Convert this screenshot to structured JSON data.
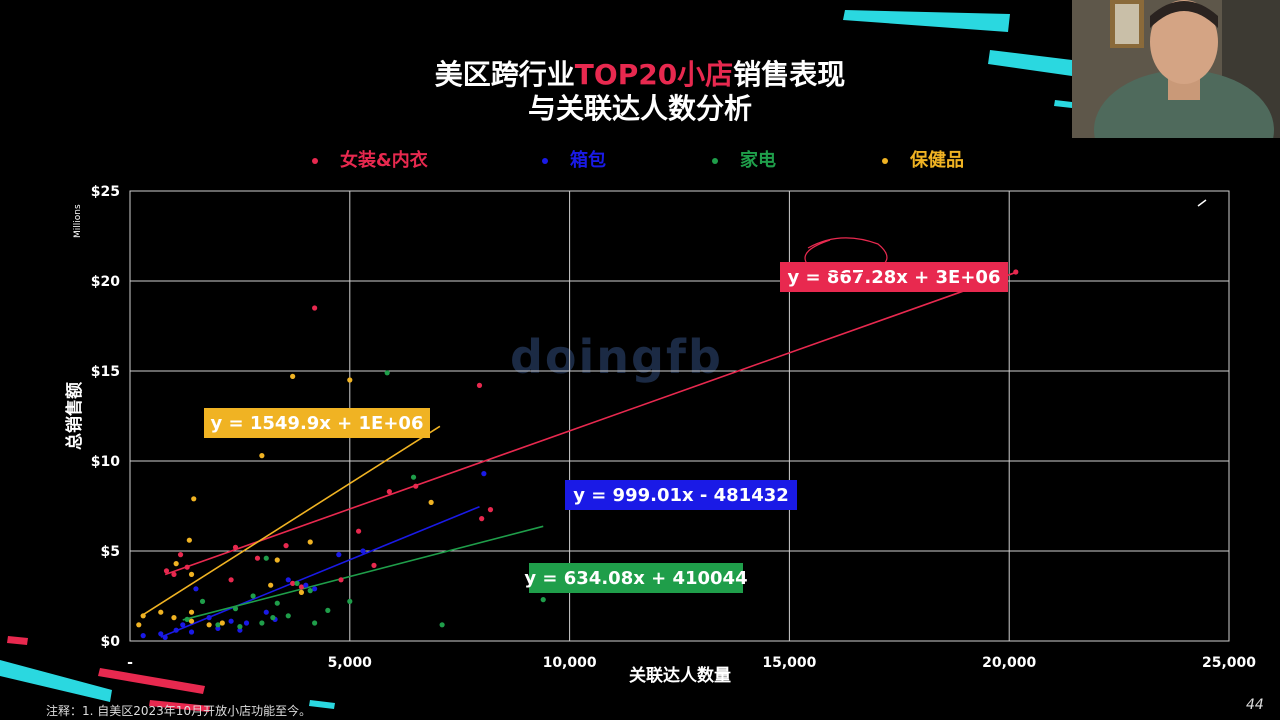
{
  "title": {
    "line1_prefix": "美区跨行业",
    "line1_highlight": "TOP20小店",
    "line1_suffix": "销售表现",
    "line2": "与关联达人数分析"
  },
  "watermark": "doingfb",
  "footnote": "注释：1. 自美区2023年10月开放小店功能至今。",
  "page_number": "44",
  "colors": {
    "women": "#e8294f",
    "bags": "#1a1ae6",
    "appliance": "#1f9e4a",
    "health": "#f0b323",
    "accent": "#00d8e0"
  },
  "chart_data": {
    "type": "scatter",
    "xlabel": "关联达人数量",
    "ylabel": "总销售额",
    "yunit": "Millions",
    "xlim": [
      0,
      25000
    ],
    "ylim": [
      0,
      25
    ],
    "x_ticks": [
      "-",
      "5,000",
      "10,000",
      "15,000",
      "20,000",
      "25,000"
    ],
    "y_ticks": [
      "$0",
      "$5",
      "$10",
      "$15",
      "$20",
      "$25"
    ],
    "grid": true,
    "legend_position": "top",
    "series": [
      {
        "name": "女装&内衣",
        "color": "#e8294f",
        "points": [
          [
            830,
            3.9
          ],
          [
            1150,
            4.8
          ],
          [
            1300,
            4.1
          ],
          [
            2300,
            3.4
          ],
          [
            2400,
            5.2
          ],
          [
            3550,
            5.3
          ],
          [
            3700,
            3.2
          ],
          [
            4200,
            18.5
          ],
          [
            4800,
            3.4
          ],
          [
            5200,
            6.1
          ],
          [
            5550,
            4.2
          ],
          [
            5900,
            8.3
          ],
          [
            7950,
            14.2
          ],
          [
            8000,
            6.8
          ],
          [
            8200,
            7.3
          ],
          [
            20150,
            20.5
          ],
          [
            1000,
            3.7
          ],
          [
            2900,
            4.6
          ],
          [
            3900,
            3.0
          ],
          [
            6500,
            8.6
          ]
        ],
        "trendline": {
          "slope": 867.28,
          "intercept": 3000000,
          "x_range": [
            800,
            20150
          ],
          "label": "y = 867.28x + 3E+06"
        }
      },
      {
        "name": "箱包",
        "color": "#1a1ae6",
        "points": [
          [
            300,
            0.3
          ],
          [
            700,
            0.4
          ],
          [
            1050,
            0.6
          ],
          [
            1200,
            0.9
          ],
          [
            1400,
            0.5
          ],
          [
            2000,
            0.7
          ],
          [
            2650,
            1.0
          ],
          [
            3300,
            1.2
          ],
          [
            3600,
            3.4
          ],
          [
            4200,
            2.9
          ],
          [
            4750,
            4.8
          ],
          [
            5300,
            5.0
          ],
          [
            8050,
            9.3
          ],
          [
            2300,
            1.1
          ],
          [
            1500,
            2.9
          ],
          [
            3100,
            1.6
          ],
          [
            800,
            0.2
          ],
          [
            1800,
            1.3
          ],
          [
            2500,
            0.6
          ],
          [
            4000,
            3.1
          ]
        ],
        "trendline": {
          "slope": 999.01,
          "intercept": -481432,
          "x_range": [
            700,
            7950
          ],
          "label": "y = 999.01x - 481432"
        }
      },
      {
        "name": "家电",
        "color": "#1f9e4a",
        "points": [
          [
            1650,
            2.2
          ],
          [
            2400,
            1.8
          ],
          [
            2500,
            0.8
          ],
          [
            3000,
            1.0
          ],
          [
            3100,
            4.6
          ],
          [
            3250,
            1.3
          ],
          [
            3350,
            2.1
          ],
          [
            3600,
            1.4
          ],
          [
            4100,
            2.8
          ],
          [
            4200,
            1.0
          ],
          [
            5000,
            2.2
          ],
          [
            5850,
            14.9
          ],
          [
            6450,
            9.1
          ],
          [
            7100,
            0.9
          ],
          [
            9400,
            2.3
          ],
          [
            1300,
            1.2
          ],
          [
            2000,
            0.9
          ],
          [
            2800,
            2.5
          ],
          [
            3800,
            3.2
          ],
          [
            4500,
            1.7
          ]
        ],
        "trendline": {
          "slope": 634.08,
          "intercept": 410044,
          "x_range": [
            1200,
            9400
          ],
          "label": "y = 634.08x + 410044"
        }
      },
      {
        "name": "保健品",
        "color": "#f0b323",
        "points": [
          [
            300,
            1.4
          ],
          [
            700,
            1.6
          ],
          [
            1000,
            1.3
          ],
          [
            1050,
            4.3
          ],
          [
            1350,
            5.6
          ],
          [
            1400,
            3.7
          ],
          [
            1400,
            1.1
          ],
          [
            1400,
            1.6
          ],
          [
            1450,
            7.9
          ],
          [
            2100,
            1.0
          ],
          [
            3000,
            10.3
          ],
          [
            3200,
            3.1
          ],
          [
            3350,
            4.5
          ],
          [
            3700,
            14.7
          ],
          [
            3900,
            2.7
          ],
          [
            4100,
            5.5
          ],
          [
            5000,
            14.5
          ],
          [
            6850,
            7.7
          ],
          [
            200,
            0.9
          ],
          [
            1800,
            0.9
          ]
        ],
        "trendline": {
          "slope": 1549.9,
          "intercept": 1000000,
          "x_range": [
            250,
            7050
          ],
          "label": "y = 1549.9x + 1E+06"
        }
      }
    ]
  }
}
